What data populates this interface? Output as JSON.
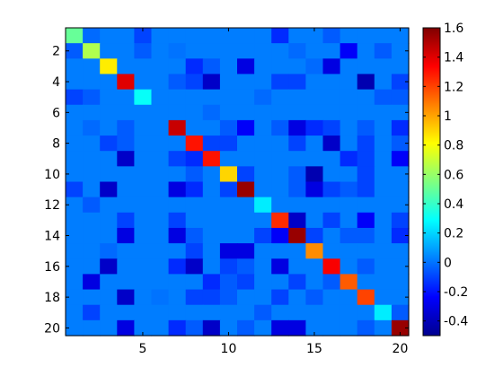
{
  "chart_data": {
    "type": "heatmap",
    "title": "",
    "xlabel": "",
    "ylabel": "",
    "rows": 20,
    "cols": 20,
    "x_ticks": [
      5,
      10,
      15,
      20
    ],
    "y_ticks": [
      2,
      4,
      6,
      8,
      10,
      12,
      14,
      16,
      18,
      20
    ],
    "colorbar": {
      "range": [
        -0.5,
        1.6
      ],
      "ticks": [
        -0.4,
        -0.2,
        0,
        0.2,
        0.4,
        0.6,
        0.8,
        1,
        1.2,
        1.4,
        1.6
      ],
      "tick_labels": [
        "-0.4",
        "-0.2",
        "0",
        "0.2",
        "0.4",
        "0.6",
        "0.8",
        "1",
        "1.2",
        "1.4",
        "1.6"
      ],
      "colormap": "jet"
    },
    "values": [
      [
        0.5,
        -0.02,
        0.02,
        0.02,
        -0.1,
        0.02,
        0.02,
        0.02,
        0.02,
        0.02,
        0.02,
        0.02,
        -0.15,
        0.02,
        0.02,
        -0.05,
        0.02,
        0.02,
        0.02,
        0.02
      ],
      [
        -0.05,
        0.65,
        0.02,
        0.02,
        -0.05,
        0.02,
        0.0,
        0.02,
        0.02,
        0.02,
        0.02,
        0.02,
        0.02,
        -0.02,
        0.02,
        0.02,
        -0.25,
        0.02,
        -0.05,
        0.02
      ],
      [
        0.02,
        0.02,
        0.85,
        0.02,
        0.02,
        0.02,
        0.02,
        -0.15,
        -0.05,
        0.02,
        -0.3,
        0.02,
        0.02,
        0.02,
        -0.02,
        -0.3,
        0.02,
        0.02,
        0.02,
        0.02
      ],
      [
        0.02,
        0.02,
        0.02,
        1.4,
        0.02,
        0.02,
        -0.05,
        -0.1,
        -0.35,
        0.02,
        0.02,
        0.02,
        -0.1,
        -0.1,
        0.02,
        0.02,
        0.02,
        -0.4,
        0.02,
        -0.1
      ],
      [
        -0.1,
        -0.05,
        0.02,
        0.02,
        0.3,
        0.02,
        0.02,
        0.02,
        0.02,
        0.02,
        0.02,
        -0.02,
        0.02,
        0.02,
        0.02,
        0.02,
        0.02,
        0.02,
        -0.05,
        -0.05
      ],
      [
        0.02,
        0.02,
        0.02,
        0.02,
        0.02,
        0.02,
        0.02,
        0.02,
        -0.02,
        0.02,
        0.02,
        0.02,
        0.02,
        0.02,
        0.02,
        0.02,
        0.02,
        0.02,
        0.02,
        0.02
      ],
      [
        0.02,
        -0.02,
        0.02,
        -0.05,
        0.02,
        0.02,
        1.45,
        0.02,
        0.02,
        -0.05,
        -0.25,
        0.02,
        -0.05,
        -0.3,
        -0.15,
        -0.1,
        0.02,
        -0.05,
        0.02,
        -0.15
      ],
      [
        0.02,
        0.02,
        -0.1,
        -0.05,
        0.02,
        0.02,
        0.02,
        1.3,
        -0.1,
        -0.1,
        0.02,
        0.02,
        0.02,
        -0.1,
        0.02,
        -0.35,
        0.02,
        -0.1,
        0.02,
        -0.05
      ],
      [
        0.02,
        0.02,
        0.02,
        -0.35,
        0.02,
        0.02,
        -0.1,
        -0.15,
        1.3,
        0.02,
        0.02,
        0.02,
        0.02,
        0.02,
        0.02,
        0.02,
        -0.15,
        -0.1,
        0.02,
        -0.25
      ],
      [
        0.02,
        0.02,
        0.02,
        0.02,
        0.02,
        0.02,
        0.02,
        -0.05,
        0.02,
        0.9,
        -0.1,
        0.02,
        0.02,
        -0.05,
        -0.4,
        0.02,
        0.02,
        -0.1,
        0.02,
        0.02
      ],
      [
        -0.1,
        0.02,
        -0.35,
        0.02,
        0.02,
        0.02,
        -0.3,
        -0.15,
        0.02,
        -0.1,
        1.55,
        0.02,
        0.02,
        -0.05,
        -0.3,
        -0.1,
        -0.05,
        -0.1,
        0.02,
        0.02
      ],
      [
        0.02,
        -0.05,
        0.02,
        0.02,
        0.02,
        0.02,
        0.02,
        0.02,
        0.02,
        0.02,
        0.02,
        0.25,
        0.02,
        0.02,
        0.02,
        0.02,
        0.02,
        0.02,
        0.02,
        0.02
      ],
      [
        0.02,
        0.02,
        0.02,
        -0.1,
        0.02,
        0.02,
        -0.1,
        0.02,
        0.02,
        0.02,
        0.02,
        0.02,
        1.25,
        -0.35,
        0.02,
        -0.1,
        0.02,
        -0.25,
        0.02,
        -0.1
      ],
      [
        0.02,
        0.02,
        0.02,
        -0.3,
        0.02,
        0.02,
        -0.3,
        -0.05,
        0.02,
        0.02,
        0.02,
        -0.1,
        -0.25,
        1.55,
        -0.1,
        0.02,
        -0.05,
        -0.05,
        0.02,
        -0.15
      ],
      [
        0.02,
        0.02,
        -0.02,
        0.02,
        0.02,
        0.02,
        0.02,
        -0.1,
        0.02,
        -0.3,
        -0.3,
        0.02,
        0.02,
        0.02,
        1.05,
        0.02,
        0.02,
        0.02,
        0.02,
        0.02
      ],
      [
        0.02,
        0.02,
        -0.35,
        0.02,
        0.02,
        0.02,
        -0.15,
        -0.35,
        0.02,
        -0.1,
        -0.05,
        0.02,
        -0.3,
        0.02,
        0.02,
        1.35,
        0.02,
        -0.05,
        0.02,
        0.02
      ],
      [
        0.02,
        -0.3,
        0.02,
        0.02,
        0.02,
        0.02,
        0.02,
        0.02,
        -0.15,
        -0.05,
        -0.1,
        0.02,
        0.02,
        -0.1,
        0.02,
        -0.05,
        1.15,
        0.02,
        0.02,
        0.02
      ],
      [
        0.02,
        0.02,
        0.02,
        -0.35,
        0.02,
        0.0,
        0.02,
        -0.1,
        -0.1,
        -0.05,
        0.02,
        0.02,
        -0.1,
        0.02,
        -0.05,
        0.02,
        0.02,
        1.2,
        0.02,
        0.02
      ],
      [
        0.02,
        -0.1,
        0.02,
        0.02,
        0.02,
        0.02,
        0.02,
        0.02,
        0.02,
        0.02,
        0.02,
        -0.05,
        0.02,
        0.02,
        0.02,
        0.02,
        0.02,
        0.02,
        0.25,
        -0.05
      ],
      [
        0.02,
        0.02,
        0.02,
        -0.3,
        0.02,
        0.02,
        -0.15,
        -0.05,
        -0.35,
        0.02,
        -0.05,
        0.02,
        -0.3,
        -0.3,
        0.02,
        0.02,
        0.02,
        -0.05,
        0.02,
        1.55
      ]
    ]
  }
}
